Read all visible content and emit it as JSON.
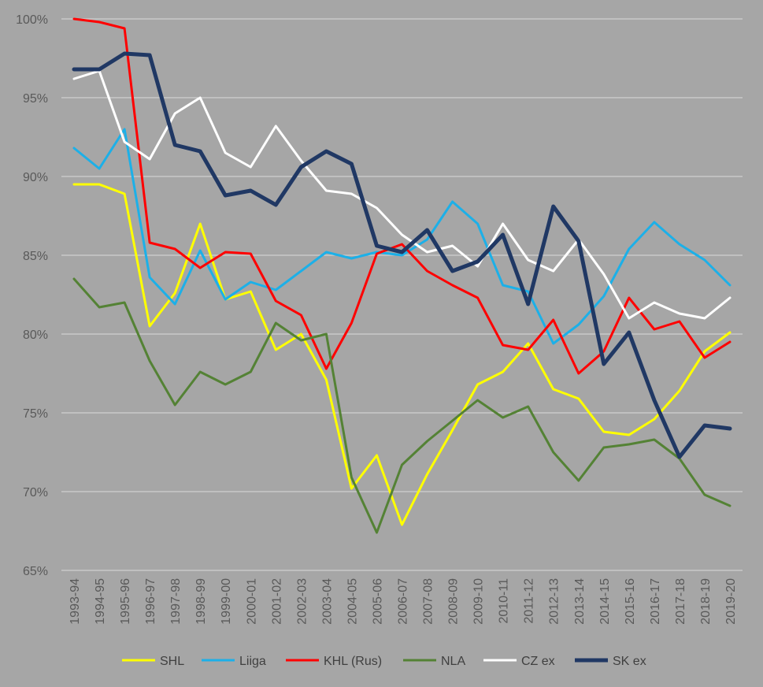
{
  "chart_data": {
    "type": "line",
    "title": "",
    "xlabel": "",
    "ylabel": "",
    "ylim": [
      65,
      100
    ],
    "y_ticks": [
      65,
      70,
      75,
      80,
      85,
      90,
      95,
      100
    ],
    "y_tick_format": "{v}%",
    "grid": "horizontal",
    "legend_position": "bottom",
    "x": [
      "1993-94",
      "1994-95",
      "1995-96",
      "1996-97",
      "1997-98",
      "1998-99",
      "1999-00",
      "2000-01",
      "2001-02",
      "2002-03",
      "2003-04",
      "2004-05",
      "2005-06",
      "2006-07",
      "2007-08",
      "2008-09",
      "2009-10",
      "2010-11",
      "2011-12",
      "2012-13",
      "2013-14",
      "2014-15",
      "2015-16",
      "2016-17",
      "2017-18",
      "2018-19",
      "2019-20"
    ],
    "series": [
      {
        "name": "SHL",
        "color": "#ffff00",
        "width": 3,
        "values": [
          89.5,
          89.5,
          88.9,
          80.5,
          82.6,
          87.0,
          82.2,
          82.7,
          79.0,
          80.0,
          77.1,
          70.2,
          72.3,
          67.9,
          71.1,
          73.9,
          76.8,
          77.6,
          79.4,
          76.5,
          75.9,
          73.8,
          73.6,
          74.6,
          76.4,
          78.9,
          80.1
        ]
      },
      {
        "name": "Liiga",
        "color": "#1cb0e8",
        "width": 3,
        "values": [
          91.8,
          90.5,
          93.0,
          83.6,
          81.9,
          85.3,
          82.2,
          83.3,
          82.8,
          84.0,
          85.2,
          84.8,
          85.2,
          85.0,
          86.0,
          88.4,
          87.0,
          83.1,
          82.7,
          79.4,
          80.6,
          82.4,
          85.4,
          87.1,
          85.7,
          84.7,
          83.1
        ]
      },
      {
        "name": "KHL (Rus)",
        "color": "#ff0000",
        "width": 3,
        "values": [
          100.0,
          99.8,
          99.4,
          85.8,
          85.4,
          84.2,
          85.2,
          85.1,
          82.1,
          81.2,
          77.8,
          80.7,
          85.1,
          85.7,
          84.0,
          83.1,
          82.3,
          79.3,
          79.0,
          80.9,
          77.5,
          78.9,
          82.3,
          80.3,
          80.8,
          78.5,
          79.5
        ]
      },
      {
        "name": "NLA",
        "color": "#548235",
        "width": 3,
        "values": [
          83.5,
          81.7,
          82.0,
          78.3,
          75.5,
          77.6,
          76.8,
          77.6,
          80.7,
          79.6,
          80.0,
          70.9,
          67.4,
          71.7,
          73.2,
          74.5,
          75.8,
          74.7,
          75.4,
          72.5,
          70.7,
          72.8,
          73.0,
          73.3,
          72.1,
          69.8,
          69.1
        ]
      },
      {
        "name": "CZ ex",
        "color": "#ffffff",
        "width": 3,
        "values": [
          96.2,
          96.7,
          92.2,
          91.1,
          94.0,
          95.0,
          91.5,
          90.6,
          93.2,
          91.0,
          89.1,
          88.9,
          88.0,
          86.3,
          85.2,
          85.6,
          84.3,
          87.0,
          84.7,
          84.0,
          86.0,
          83.8,
          81.0,
          82.0,
          81.3,
          81.0,
          82.3
        ]
      },
      {
        "name": "SK ex",
        "color": "#203864",
        "width": 5,
        "values": [
          96.8,
          96.8,
          97.8,
          97.7,
          92.0,
          91.6,
          88.8,
          89.1,
          88.2,
          90.6,
          91.6,
          90.8,
          85.6,
          85.2,
          86.6,
          84.0,
          84.6,
          86.3,
          81.9,
          88.1,
          85.9,
          78.1,
          80.1,
          75.8,
          72.2,
          74.2,
          74.0
        ]
      }
    ]
  }
}
